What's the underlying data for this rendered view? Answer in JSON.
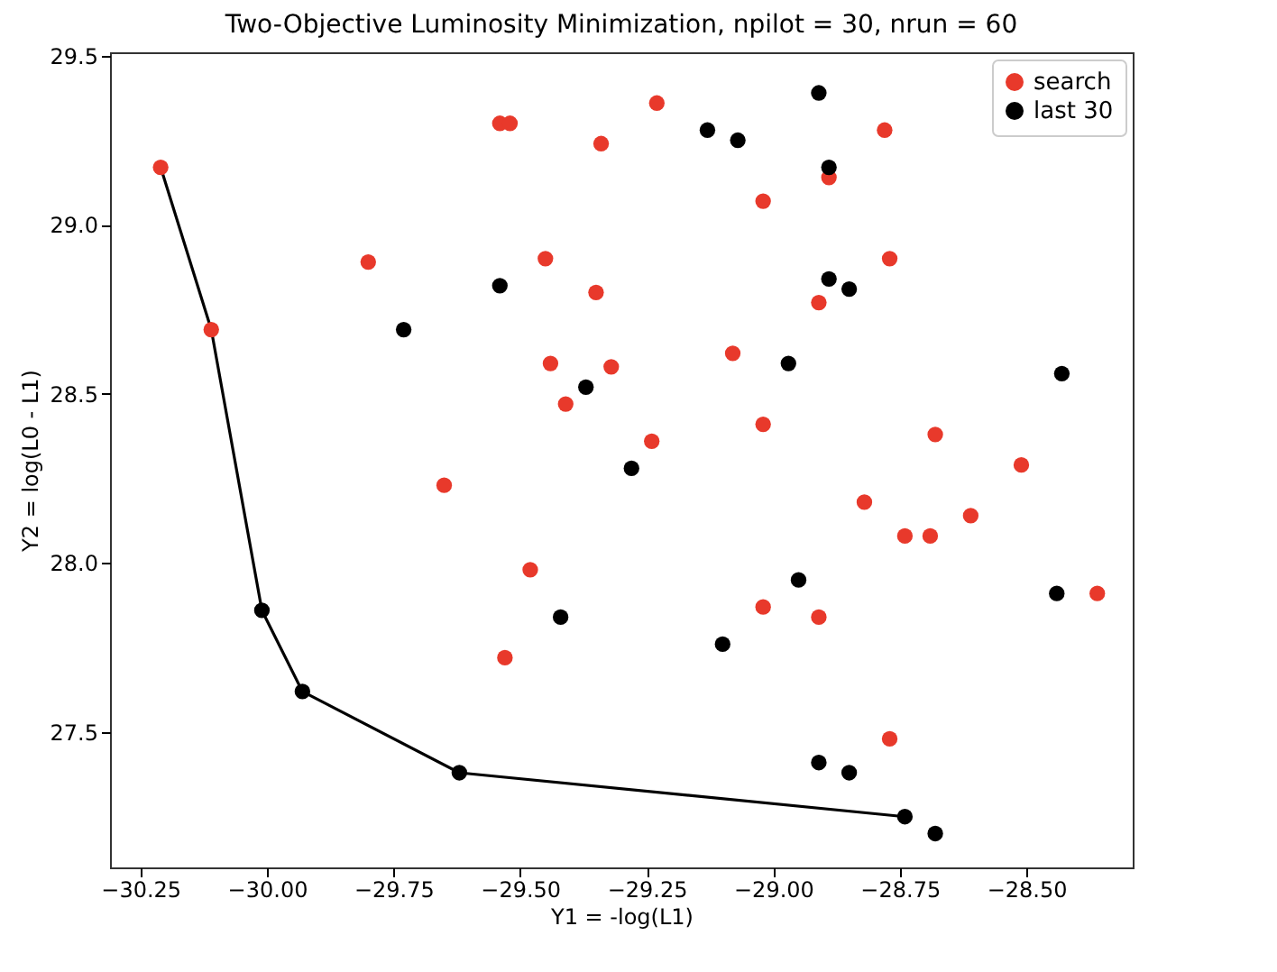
{
  "chart_data": {
    "type": "scatter",
    "title": "Two-Objective Luminosity Minimization, npilot = 30, nrun = 60",
    "xlabel": "Y1 = -log(L1)",
    "ylabel": "Y2 = log(L0 - L1)",
    "xlim": [
      -30.31,
      -28.29
    ],
    "ylim": [
      27.1,
      29.51
    ],
    "xticks": [
      {
        "value": -30.25,
        "label": "−30.25"
      },
      {
        "value": -30,
        "label": "−30.00"
      },
      {
        "value": -29.75,
        "label": "−29.75"
      },
      {
        "value": -29.5,
        "label": "−29.50"
      },
      {
        "value": -29.25,
        "label": "−29.25"
      },
      {
        "value": -29,
        "label": "−29.00"
      },
      {
        "value": -28.75,
        "label": "−28.75"
      },
      {
        "value": -28.5,
        "label": "−28.50"
      }
    ],
    "yticks": [
      27.5,
      {
        "value": 28,
        "label": "28.0"
      },
      28.5,
      {
        "value": 29,
        "label": "29.0"
      },
      29.5
    ],
    "grid": false,
    "legend": "top right",
    "marker": "circle",
    "series": [
      {
        "type": "line",
        "color": "#000000",
        "marker": "none",
        "line_style": "solid",
        "x": [
          -30.21,
          -30.11,
          -30.01,
          -29.93,
          -29.62,
          -28.74
        ],
        "values": [
          29.17,
          28.69,
          27.86,
          27.62,
          27.38,
          27.25
        ]
      },
      {
        "name": "search",
        "color": "#e8392b",
        "x": [
          -30.21,
          -30.11,
          -29.54,
          -29.52,
          -29.34,
          -29.8,
          -29.45,
          -29.35,
          -29.44,
          -29.32,
          -29.41,
          -29.23,
          -28.78,
          -28.89,
          -29.02,
          -28.77,
          -28.91,
          -29.08,
          -29.02,
          -28.68,
          -29.24,
          -28.51,
          -29.65,
          -29.48,
          -29.53,
          -28.82,
          -28.74,
          -28.69,
          -28.61,
          -28.36,
          -29.02,
          -28.91,
          -28.77
        ],
        "values": [
          29.17,
          28.69,
          29.3,
          29.3,
          29.24,
          28.89,
          28.9,
          28.8,
          28.59,
          28.58,
          28.47,
          29.36,
          29.28,
          29.14,
          29.07,
          28.9,
          28.77,
          28.62,
          28.41,
          28.38,
          28.36,
          28.29,
          28.23,
          27.98,
          27.72,
          28.18,
          28.08,
          28.08,
          28.14,
          27.91,
          27.87,
          27.84,
          27.48
        ]
      },
      {
        "name": "last 30",
        "color": "#000000",
        "x": [
          -29.54,
          -29.73,
          -29.37,
          -28.91,
          -29.13,
          -29.07,
          -28.89,
          -28.89,
          -28.85,
          -28.97,
          -28.43,
          -29.28,
          -29.42,
          -30.01,
          -29.93,
          -29.62,
          -28.95,
          -28.44,
          -29.1,
          -28.91,
          -28.85,
          -28.74,
          -28.68
        ],
        "values": [
          28.82,
          28.69,
          28.52,
          29.39,
          29.28,
          29.25,
          29.17,
          28.84,
          28.81,
          28.59,
          28.56,
          28.28,
          27.84,
          27.86,
          27.62,
          27.38,
          27.95,
          27.91,
          27.76,
          27.41,
          27.38,
          27.25,
          27.2
        ]
      }
    ]
  }
}
